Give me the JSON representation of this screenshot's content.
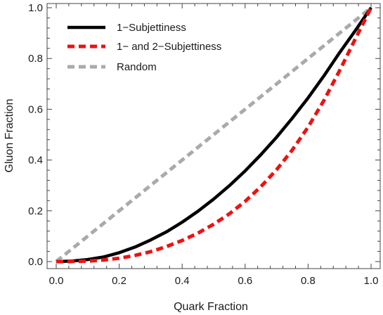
{
  "chart_data": {
    "type": "line",
    "xlabel": "Quark Fraction",
    "ylabel": "Gluon Fraction",
    "xlim": [
      0,
      1
    ],
    "ylim": [
      0,
      1
    ],
    "xticks": [
      "0.0",
      "0.2",
      "0.4",
      "0.6",
      "0.8",
      "1.0"
    ],
    "yticks": [
      "0.0",
      "0.2",
      "0.4",
      "0.6",
      "0.8",
      "1.0"
    ],
    "grid": false,
    "legend_position": "top-left",
    "series": [
      {
        "name": "1−Subjettiness",
        "color": "#000000",
        "style": "solid",
        "x": [
          0,
          0.05,
          0.1,
          0.15,
          0.2,
          0.25,
          0.3,
          0.35,
          0.4,
          0.45,
          0.5,
          0.55,
          0.6,
          0.65,
          0.7,
          0.75,
          0.8,
          0.85,
          0.9,
          0.95,
          1.0
        ],
        "y": [
          0,
          0.002,
          0.008,
          0.018,
          0.035,
          0.057,
          0.085,
          0.117,
          0.155,
          0.198,
          0.246,
          0.299,
          0.357,
          0.421,
          0.49,
          0.565,
          0.645,
          0.731,
          0.823,
          0.91,
          1.0
        ]
      },
      {
        "name": "1− and 2−Subjettiness",
        "color": "#ee1111",
        "style": "dashed",
        "x": [
          0,
          0.05,
          0.1,
          0.15,
          0.2,
          0.25,
          0.3,
          0.35,
          0.4,
          0.45,
          0.5,
          0.55,
          0.6,
          0.65,
          0.7,
          0.75,
          0.8,
          0.85,
          0.9,
          0.95,
          1.0
        ],
        "y": [
          0,
          0.0003,
          0.002,
          0.006,
          0.013,
          0.024,
          0.039,
          0.059,
          0.083,
          0.112,
          0.147,
          0.188,
          0.237,
          0.295,
          0.362,
          0.44,
          0.53,
          0.634,
          0.752,
          0.877,
          1.0
        ]
      },
      {
        "name": "Random",
        "color": "#aaaaaa",
        "style": "dashed",
        "x": [
          0,
          1
        ],
        "y": [
          0,
          1
        ]
      }
    ]
  }
}
